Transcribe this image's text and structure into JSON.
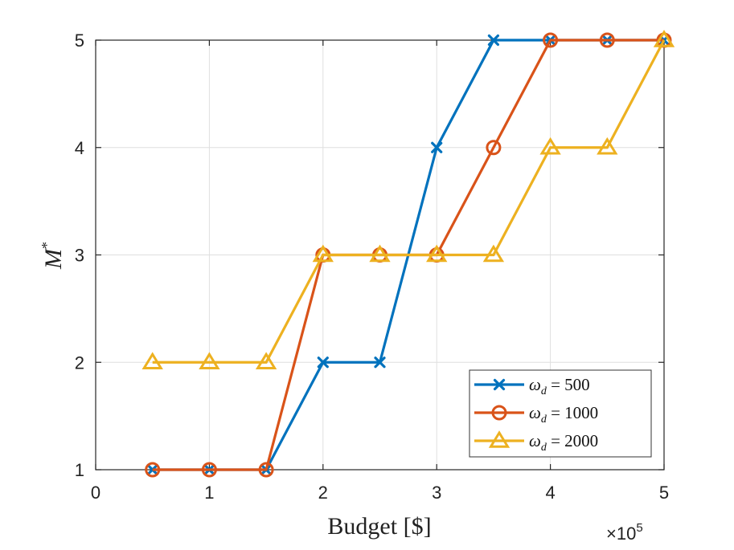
{
  "chart_data": {
    "type": "line",
    "title": "",
    "xlabel": "Budget [$]",
    "ylabel": "M",
    "ylabel_superscript": "*",
    "x_exponent_base": "×10",
    "x_exponent_power": "5",
    "xlim": [
      0,
      500000
    ],
    "ylim": [
      1,
      5
    ],
    "x_ticks": [
      0,
      100000,
      200000,
      300000,
      400000,
      500000
    ],
    "x_tick_labels": [
      "0",
      "1",
      "2",
      "3",
      "4",
      "5"
    ],
    "y_ticks": [
      1,
      2,
      3,
      4,
      5
    ],
    "y_tick_labels": [
      "1",
      "2",
      "3",
      "4",
      "5"
    ],
    "grid": true,
    "legend_position": "bottom-right",
    "x": [
      50000,
      100000,
      150000,
      200000,
      250000,
      300000,
      350000,
      400000,
      450000,
      500000
    ],
    "series": [
      {
        "name": "ω_d = 500",
        "legend_prefix": "ω",
        "legend_sub": "d",
        "legend_value": " = 500",
        "color": "#0072BD",
        "marker": "x",
        "values": [
          1,
          1,
          1,
          2,
          2,
          4,
          5,
          5,
          5,
          5
        ]
      },
      {
        "name": "ω_d = 1000",
        "legend_prefix": "ω",
        "legend_sub": "d",
        "legend_value": " = 1000",
        "color": "#D95319",
        "marker": "circle",
        "values": [
          1,
          1,
          1,
          3,
          3,
          3,
          4,
          5,
          5,
          5
        ]
      },
      {
        "name": "ω_d = 2000",
        "legend_prefix": "ω",
        "legend_sub": "d",
        "legend_value": " = 2000",
        "color": "#EDB120",
        "marker": "triangle",
        "values": [
          2,
          2,
          2,
          3,
          3,
          3,
          3,
          4,
          4,
          5
        ]
      }
    ]
  }
}
